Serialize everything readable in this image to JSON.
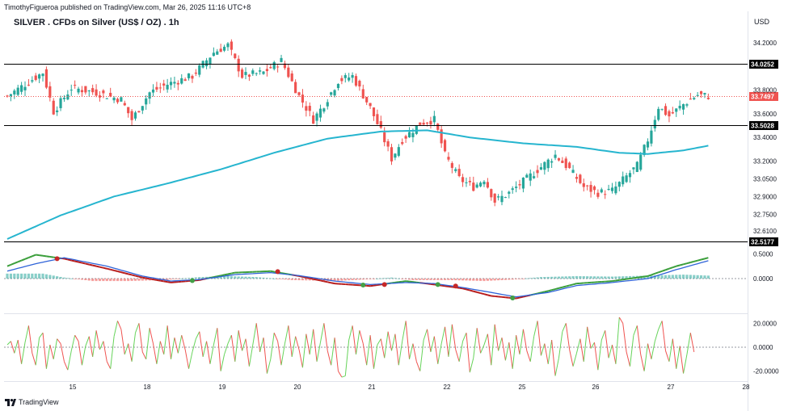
{
  "header": {
    "published_by": "TimothyFigueroa published on TradingView.com, Mar 26, 2025 11:16 UTC+8",
    "title": "SILVER . CFDs on Silver (US$ / OZ) . 1h",
    "currency": "USD"
  },
  "footer": {
    "brand": "TradingView",
    "brand_icon": "tradingview-logo-icon"
  },
  "colors": {
    "up": "#26a69a",
    "down": "#ef5350",
    "ma": "#26b5cf",
    "current_price_line": "#ef5350",
    "level_line": "#000000",
    "macd_fast": "#3a9e3a",
    "macd_slow": "#2f63d8",
    "macd_secondary_fast": "#b71c1c",
    "osc_up": "#66d35a",
    "osc_down": "#ef5350"
  },
  "chart_data": [
    {
      "type": "candlestick",
      "title": "SILVER . CFDs on Silver (US$ / OZ) . 1h",
      "x_tick_labels": [
        "15",
        "18",
        "19",
        "20",
        "21",
        "22",
        "25",
        "26",
        "27",
        "28"
      ],
      "y_tick_labels": [
        "34.2000",
        "33.8000",
        "33.6000",
        "33.4000",
        "33.2000",
        "33.0500",
        "32.9000",
        "32.7500",
        "32.6100"
      ],
      "ylim": [
        32.54,
        34.29
      ],
      "horizontal_levels": [
        {
          "label": "34.0252",
          "value": 34.0252
        },
        {
          "label": "33.5028",
          "value": 33.5028
        },
        {
          "label": "32.5177",
          "value": 32.5177
        }
      ],
      "current_price": {
        "label": "33.7497",
        "value": 33.7497
      },
      "candles_keypoints": [
        {
          "i": 0,
          "price": 33.75
        },
        {
          "i": 5,
          "price": 33.85
        },
        {
          "i": 10,
          "price": 33.95
        },
        {
          "i": 13,
          "price": 33.62
        },
        {
          "i": 18,
          "price": 33.82
        },
        {
          "i": 25,
          "price": 33.78
        },
        {
          "i": 32,
          "price": 33.72
        },
        {
          "i": 35,
          "price": 33.55
        },
        {
          "i": 40,
          "price": 33.78
        },
        {
          "i": 45,
          "price": 33.85
        },
        {
          "i": 52,
          "price": 33.92
        },
        {
          "i": 58,
          "price": 34.12
        },
        {
          "i": 62,
          "price": 34.18
        },
        {
          "i": 66,
          "price": 33.92
        },
        {
          "i": 72,
          "price": 33.95
        },
        {
          "i": 77,
          "price": 34.05
        },
        {
          "i": 82,
          "price": 33.75
        },
        {
          "i": 86,
          "price": 33.55
        },
        {
          "i": 89,
          "price": 33.68
        },
        {
          "i": 93,
          "price": 33.88
        },
        {
          "i": 97,
          "price": 33.92
        },
        {
          "i": 102,
          "price": 33.65
        },
        {
          "i": 105,
          "price": 33.45
        },
        {
          "i": 108,
          "price": 33.22
        },
        {
          "i": 111,
          "price": 33.38
        },
        {
          "i": 116,
          "price": 33.52
        },
        {
          "i": 120,
          "price": 33.55
        },
        {
          "i": 123,
          "price": 33.25
        },
        {
          "i": 127,
          "price": 33.05
        },
        {
          "i": 131,
          "price": 32.98
        },
        {
          "i": 134,
          "price": 33.05
        },
        {
          "i": 137,
          "price": 32.86
        },
        {
          "i": 141,
          "price": 32.93
        },
        {
          "i": 146,
          "price": 33.05
        },
        {
          "i": 150,
          "price": 33.15
        },
        {
          "i": 154,
          "price": 33.25
        },
        {
          "i": 158,
          "price": 33.13
        },
        {
          "i": 162,
          "price": 32.98
        },
        {
          "i": 166,
          "price": 32.93
        },
        {
          "i": 170,
          "price": 32.95
        },
        {
          "i": 174,
          "price": 33.07
        },
        {
          "i": 177,
          "price": 33.16
        },
        {
          "i": 180,
          "price": 33.38
        },
        {
          "i": 183,
          "price": 33.66
        },
        {
          "i": 186,
          "price": 33.58
        },
        {
          "i": 190,
          "price": 33.68
        },
        {
          "i": 194,
          "price": 33.76
        },
        {
          "i": 197,
          "price": 33.75
        }
      ],
      "moving_average": [
        {
          "i": 0,
          "v": 32.54
        },
        {
          "i": 15,
          "v": 32.74
        },
        {
          "i": 30,
          "v": 32.9
        },
        {
          "i": 45,
          "v": 33.01
        },
        {
          "i": 60,
          "v": 33.13
        },
        {
          "i": 75,
          "v": 33.27
        },
        {
          "i": 90,
          "v": 33.39
        },
        {
          "i": 105,
          "v": 33.45
        },
        {
          "i": 118,
          "v": 33.46
        },
        {
          "i": 130,
          "v": 33.4
        },
        {
          "i": 145,
          "v": 33.35
        },
        {
          "i": 160,
          "v": 33.32
        },
        {
          "i": 172,
          "v": 33.27
        },
        {
          "i": 180,
          "v": 33.26
        },
        {
          "i": 190,
          "v": 33.29
        },
        {
          "i": 197,
          "v": 33.33
        }
      ]
    },
    {
      "type": "line",
      "name": "macd-oscillator",
      "y_tick_labels": [
        "0.5000",
        "0.0000"
      ],
      "ylim": [
        -0.7,
        0.7
      ],
      "series": [
        {
          "key": "fast",
          "values": [
            [
              0,
              0.25
            ],
            [
              8,
              0.48
            ],
            [
              16,
              0.4
            ],
            [
              28,
              0.2
            ],
            [
              38,
              0.02
            ],
            [
              46,
              -0.08
            ],
            [
              54,
              -0.03
            ],
            [
              64,
              0.12
            ],
            [
              74,
              0.15
            ],
            [
              82,
              0.05
            ],
            [
              92,
              -0.1
            ],
            [
              102,
              -0.15
            ],
            [
              112,
              -0.05
            ],
            [
              120,
              -0.12
            ],
            [
              128,
              -0.2
            ],
            [
              136,
              -0.35
            ],
            [
              143,
              -0.4
            ],
            [
              152,
              -0.25
            ],
            [
              160,
              -0.1
            ],
            [
              170,
              -0.05
            ],
            [
              180,
              0.05
            ],
            [
              188,
              0.25
            ],
            [
              197,
              0.42
            ]
          ]
        },
        {
          "key": "slow",
          "values": [
            [
              0,
              0.15
            ],
            [
              8,
              0.3
            ],
            [
              16,
              0.42
            ],
            [
              28,
              0.25
            ],
            [
              38,
              0.05
            ],
            [
              46,
              -0.05
            ],
            [
              54,
              -0.02
            ],
            [
              64,
              0.08
            ],
            [
              74,
              0.12
            ],
            [
              82,
              0.06
            ],
            [
              92,
              -0.05
            ],
            [
              102,
              -0.12
            ],
            [
              112,
              -0.08
            ],
            [
              120,
              -0.1
            ],
            [
              128,
              -0.18
            ],
            [
              136,
              -0.28
            ],
            [
              143,
              -0.37
            ],
            [
              152,
              -0.28
            ],
            [
              160,
              -0.14
            ],
            [
              170,
              -0.08
            ],
            [
              180,
              0.0
            ],
            [
              188,
              0.18
            ],
            [
              197,
              0.36
            ]
          ]
        }
      ],
      "histogram_keypoints": [
        [
          0,
          0.1
        ],
        [
          10,
          0.1
        ],
        [
          16,
          0.02
        ],
        [
          24,
          -0.05
        ],
        [
          34,
          -0.05
        ],
        [
          44,
          -0.03
        ],
        [
          54,
          0.03
        ],
        [
          62,
          0.05
        ],
        [
          70,
          0.03
        ],
        [
          80,
          -0.03
        ],
        [
          92,
          -0.05
        ],
        [
          100,
          -0.02
        ],
        [
          108,
          0.02
        ],
        [
          114,
          -0.03
        ],
        [
          124,
          -0.03
        ],
        [
          134,
          -0.05
        ],
        [
          142,
          -0.02
        ],
        [
          150,
          0.03
        ],
        [
          160,
          0.05
        ],
        [
          170,
          0.04
        ],
        [
          180,
          0.06
        ],
        [
          190,
          0.08
        ],
        [
          197,
          0.06
        ]
      ],
      "cross_points": [
        {
          "i": 14,
          "v": 0.4,
          "kind": "bear"
        },
        {
          "i": 52,
          "v": -0.04,
          "kind": "bull"
        },
        {
          "i": 76,
          "v": 0.14,
          "kind": "bear"
        },
        {
          "i": 100,
          "v": -0.13,
          "kind": "bull"
        },
        {
          "i": 106,
          "v": -0.12,
          "kind": "bear"
        },
        {
          "i": 121,
          "v": -0.12,
          "kind": "bull"
        },
        {
          "i": 126,
          "v": -0.15,
          "kind": "bear"
        },
        {
          "i": 142,
          "v": -0.39,
          "kind": "bull"
        }
      ]
    },
    {
      "type": "line",
      "name": "momentum-oscillator",
      "y_tick_labels": [
        "20.0000",
        "0.0000",
        "-20.0000"
      ],
      "ylim": [
        -27,
        27
      ],
      "values": [
        2,
        5,
        -5,
        6,
        -14,
        4,
        18,
        -5,
        -15,
        8,
        12,
        -18,
        2,
        -10,
        7,
        3,
        -12,
        -19,
        -3,
        10,
        5,
        -15,
        1,
        9,
        -8,
        14,
        -2,
        5,
        -12,
        -18,
        9,
        22,
        15,
        -6,
        3,
        -12,
        12,
        20,
        -4,
        -10,
        16,
        3,
        -14,
        5,
        -6,
        18,
        -10,
        8,
        -5,
        10,
        -2,
        -18,
        -4,
        7,
        13,
        -8,
        5,
        -14,
        2,
        16,
        -20,
        -6,
        3,
        10,
        -12,
        14,
        -3,
        7,
        -16,
        2,
        20,
        -4,
        8,
        -22,
        -10,
        12,
        5,
        -15,
        3,
        18,
        -8,
        9,
        -2,
        -17,
        11,
        -6,
        15,
        -12,
        4,
        20,
        -3,
        -15,
        8,
        -20,
        -25,
        -24,
        6,
        18,
        -6,
        14,
        3,
        -15,
        10,
        -18,
        2,
        7,
        -9,
        13,
        -3,
        11,
        -15,
        5,
        22,
        -10,
        3,
        -12,
        -20,
        6,
        15,
        -4,
        9,
        -14,
        3,
        17,
        -8,
        19,
        -2,
        -12,
        5,
        12,
        -21,
        -9,
        16,
        -5,
        2,
        11,
        -15,
        19,
        -3,
        8,
        -11,
        4,
        -18,
        10,
        -6,
        15,
        -3,
        -12,
        9,
        22,
        -7,
        3,
        -14,
        6,
        -24,
        -9,
        13,
        20,
        -2,
        -16,
        -5,
        7,
        -12,
        17,
        -1,
        4,
        -19,
        6,
        14,
        -9,
        2,
        -14,
        25,
        20,
        -4,
        -16,
        10,
        18,
        -6,
        -20,
        3,
        -10,
        5,
        15,
        22,
        -3,
        -12,
        7,
        -18,
        1,
        -22,
        -6,
        12,
        -4
      ]
    }
  ]
}
